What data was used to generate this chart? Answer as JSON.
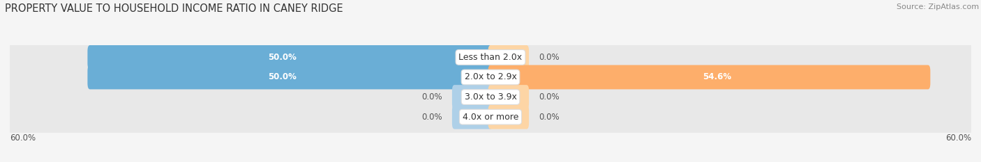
{
  "title": "PROPERTY VALUE TO HOUSEHOLD INCOME RATIO IN CANEY RIDGE",
  "source": "Source: ZipAtlas.com",
  "categories": [
    "Less than 2.0x",
    "2.0x to 2.9x",
    "3.0x to 3.9x",
    "4.0x or more"
  ],
  "without_mortgage": [
    50.0,
    50.0,
    0.0,
    0.0
  ],
  "with_mortgage": [
    0.0,
    54.6,
    0.0,
    0.0
  ],
  "stub_size": 4.5,
  "xlim": 60.0,
  "color_without": "#6aaed6",
  "color_with": "#fdae6b",
  "color_without_light": "#aed0e8",
  "color_with_light": "#fdd5a5",
  "row_bg_color": "#e8e8e8",
  "title_fontsize": 10.5,
  "source_fontsize": 8,
  "value_fontsize": 8.5,
  "axis_label_fontsize": 8.5,
  "legend_fontsize": 9,
  "category_fontsize": 9
}
